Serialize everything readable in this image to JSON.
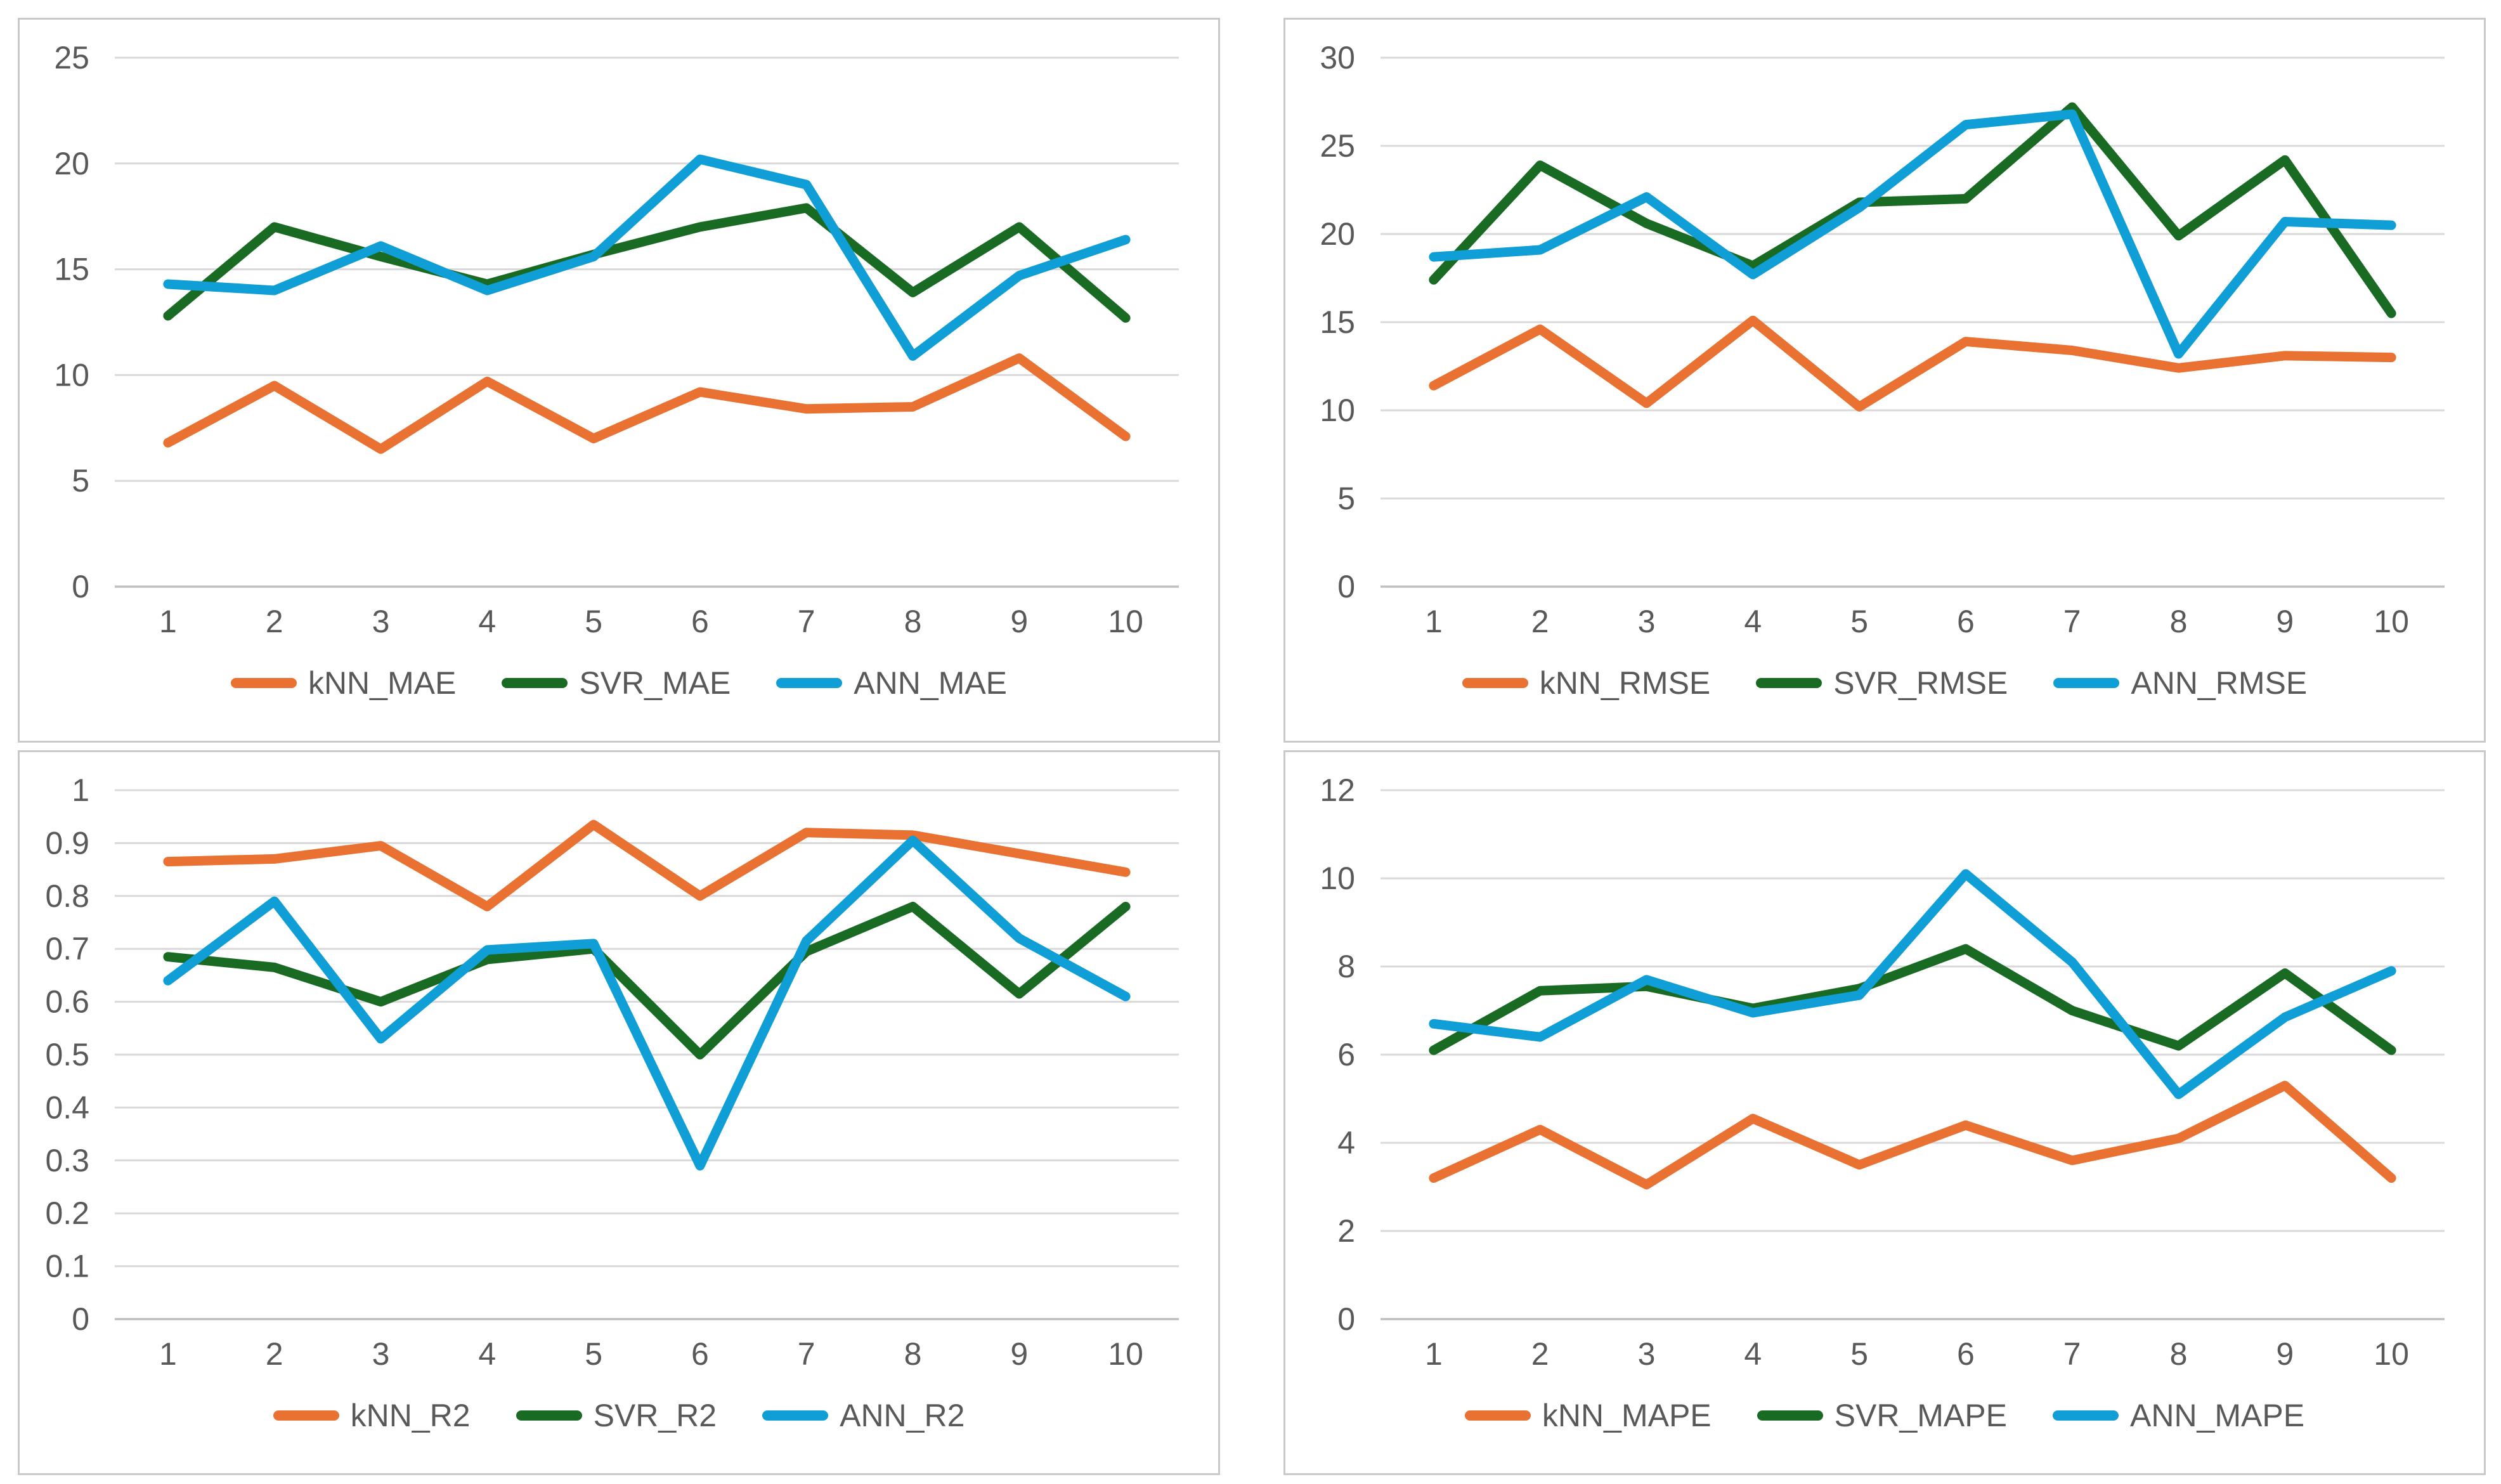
{
  "page": {
    "background": "#ffffff",
    "panel_border_color": "#c9c9c9",
    "gridline_color": "#d9d9d9",
    "axisline_color": "#bfbfbf",
    "tick_text_color": "#595959",
    "legend_text_color": "#595959"
  },
  "palette": {
    "kNN": "#E97132",
    "SVR": "#196B24",
    "ANN": "#0F9ED5"
  },
  "chart_data": [
    {
      "type": "line",
      "position": "top-left",
      "title": "",
      "xlabel": "",
      "ylabel": "",
      "grid": true,
      "legend_position": "bottom",
      "categories": [
        "1",
        "2",
        "3",
        "4",
        "5",
        "6",
        "7",
        "8",
        "9",
        "10"
      ],
      "ylim": [
        0,
        25
      ],
      "ystep": 5,
      "ytick_labels": [
        "0",
        "5",
        "10",
        "15",
        "20",
        "25"
      ],
      "series": [
        {
          "name": "kNN_MAE",
          "color_key": "kNN",
          "values": [
            6.8,
            9.5,
            6.5,
            9.7,
            7.0,
            9.2,
            8.4,
            8.5,
            10.8,
            7.1
          ]
        },
        {
          "name": "SVR_MAE",
          "color_key": "SVR",
          "values": [
            12.8,
            17.0,
            15.6,
            14.3,
            15.7,
            17.0,
            17.9,
            13.9,
            17.0,
            12.7
          ]
        },
        {
          "name": "ANN_MAE",
          "color_key": "ANN",
          "values": [
            14.3,
            14.0,
            16.1,
            14.0,
            15.6,
            20.2,
            19.0,
            10.9,
            14.7,
            16.4
          ]
        }
      ]
    },
    {
      "type": "line",
      "position": "top-right",
      "title": "",
      "xlabel": "",
      "ylabel": "",
      "grid": true,
      "legend_position": "bottom",
      "categories": [
        "1",
        "2",
        "3",
        "4",
        "5",
        "6",
        "7",
        "8",
        "9",
        "10"
      ],
      "ylim": [
        0,
        30
      ],
      "ystep": 5,
      "ytick_labels": [
        "0",
        "5",
        "10",
        "15",
        "20",
        "25",
        "30"
      ],
      "series": [
        {
          "name": "kNN_RMSE",
          "color_key": "kNN",
          "values": [
            11.4,
            14.6,
            10.4,
            15.1,
            10.2,
            13.9,
            13.4,
            12.4,
            13.1,
            13.0
          ]
        },
        {
          "name": "SVR_RMSE",
          "color_key": "SVR",
          "values": [
            17.4,
            23.9,
            20.6,
            18.2,
            21.8,
            22.0,
            27.2,
            19.9,
            24.2,
            15.5
          ]
        },
        {
          "name": "ANN_RMSE",
          "color_key": "ANN",
          "values": [
            18.7,
            19.1,
            22.1,
            17.7,
            21.5,
            26.2,
            26.8,
            13.2,
            20.7,
            20.5
          ]
        }
      ]
    },
    {
      "type": "line",
      "position": "bottom-left",
      "title": "",
      "xlabel": "",
      "ylabel": "",
      "grid": true,
      "legend_position": "bottom",
      "categories": [
        "1",
        "2",
        "3",
        "4",
        "5",
        "6",
        "7",
        "8",
        "9",
        "10"
      ],
      "ylim": [
        0,
        1
      ],
      "ystep": 0.1,
      "ytick_labels": [
        "0",
        "0.1",
        "0.2",
        "0.3",
        "0.4",
        "0.5",
        "0.6",
        "0.7",
        "0.8",
        "0.9",
        "1"
      ],
      "series": [
        {
          "name": "kNN_R2",
          "color_key": "kNN",
          "values": [
            0.865,
            0.87,
            0.895,
            0.78,
            0.935,
            0.8,
            0.92,
            0.915,
            0.88,
            0.845
          ]
        },
        {
          "name": "SVR_R2",
          "color_key": "SVR",
          "values": [
            0.685,
            0.665,
            0.6,
            0.68,
            0.7,
            0.5,
            0.695,
            0.78,
            0.615,
            0.78
          ]
        },
        {
          "name": "ANN_R2",
          "color_key": "ANN",
          "values": [
            0.64,
            0.79,
            0.53,
            0.698,
            0.71,
            0.29,
            0.715,
            0.905,
            0.72,
            0.61
          ]
        }
      ]
    },
    {
      "type": "line",
      "position": "bottom-right",
      "title": "",
      "xlabel": "",
      "ylabel": "",
      "grid": true,
      "legend_position": "bottom",
      "categories": [
        "1",
        "2",
        "3",
        "4",
        "5",
        "6",
        "7",
        "8",
        "9",
        "10"
      ],
      "ylim": [
        0,
        12
      ],
      "ystep": 2,
      "ytick_labels": [
        "0",
        "2",
        "4",
        "6",
        "8",
        "10",
        "12"
      ],
      "series": [
        {
          "name": "kNN_MAPE",
          "color_key": "kNN",
          "values": [
            3.2,
            4.3,
            3.05,
            4.55,
            3.5,
            4.4,
            3.6,
            4.1,
            5.3,
            3.2
          ]
        },
        {
          "name": "SVR_MAPE",
          "color_key": "SVR",
          "values": [
            6.1,
            7.45,
            7.55,
            7.05,
            7.5,
            8.4,
            7.0,
            6.2,
            7.85,
            6.1
          ]
        },
        {
          "name": "ANN_MAPE",
          "color_key": "ANN",
          "values": [
            6.7,
            6.4,
            7.7,
            6.95,
            7.35,
            10.1,
            8.1,
            5.1,
            6.85,
            7.9
          ]
        }
      ]
    }
  ]
}
